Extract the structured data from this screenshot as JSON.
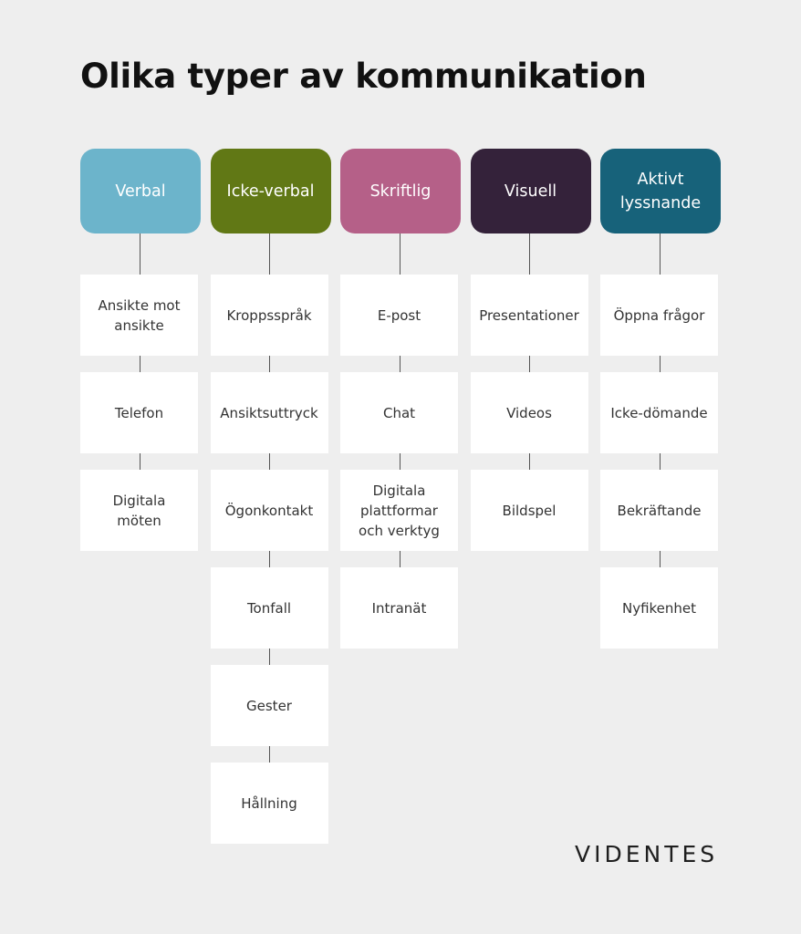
{
  "title": "Olika typer av kommunikation",
  "columns": [
    {
      "label": "Verbal",
      "color": "#6cb4cb",
      "items": [
        "Ansikte mot ansikte",
        "Telefon",
        "Digitala möten"
      ]
    },
    {
      "label": "Icke-verbal",
      "color": "#617815",
      "items": [
        "Kroppsspråk",
        "Ansiktsuttryck",
        "Ögonkontakt",
        "Tonfall",
        "Gester",
        "Hållning"
      ]
    },
    {
      "label": "Skriftlig",
      "color": "#b56088",
      "items": [
        "E-post",
        "Chat",
        "Digitala plattformar och verktyg",
        "Intranät"
      ]
    },
    {
      "label": "Visuell",
      "color": "#34223a",
      "items": [
        "Presentationer",
        "Videos",
        "Bildspel"
      ]
    },
    {
      "label": "Aktivt lyssnande",
      "color": "#17627a",
      "items": [
        "Öppna frågor",
        "Icke-dömande",
        "Bekräftande",
        "Nyfikenhet"
      ]
    }
  ],
  "logo": "VIDENTES"
}
